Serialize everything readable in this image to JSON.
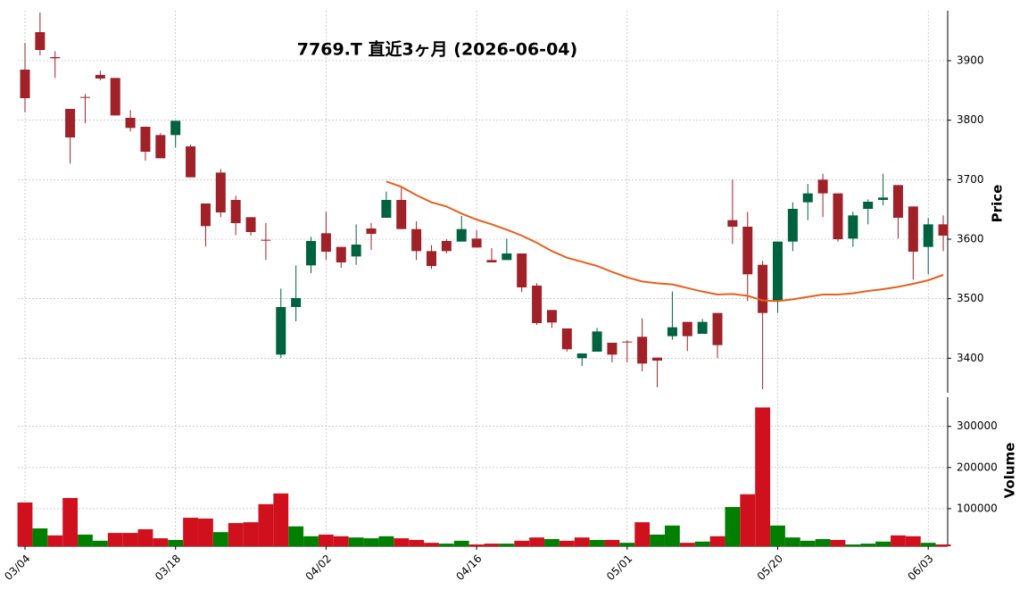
{
  "chart_data": {
    "type": "candlestick",
    "title": "7769.T  直近3ヶ月  (2026-06-04)",
    "categories": [
      "03/04",
      null,
      null,
      null,
      null,
      null,
      null,
      null,
      null,
      null,
      "03/18",
      null,
      null,
      null,
      null,
      null,
      null,
      null,
      null,
      null,
      "04/02",
      null,
      null,
      null,
      null,
      null,
      null,
      null,
      null,
      null,
      "04/16",
      null,
      null,
      null,
      null,
      null,
      null,
      null,
      null,
      null,
      "05/01",
      null,
      null,
      null,
      null,
      null,
      null,
      null,
      null,
      null,
      "05/20",
      null,
      null,
      null,
      null,
      null,
      null,
      null,
      null,
      null,
      "06/03",
      null
    ],
    "open": [
      3885,
      3948,
      3906,
      3819,
      3839,
      3876,
      3871,
      3804,
      3789,
      3775,
      3775,
      3756,
      3660,
      3712,
      3666,
      3637,
      3599,
      3406,
      3486,
      3556,
      3610,
      3587,
      3571,
      3618,
      3636,
      3666,
      3617,
      3580,
      3597,
      3596,
      3601,
      3565,
      3565,
      3576,
      3522,
      3481,
      3450,
      3400,
      3411,
      3426,
      3428,
      3436,
      3401,
      3437,
      3461,
      3441,
      3476,
      3632,
      3621,
      3557,
      3496,
      3596,
      3662,
      3700,
      3677,
      3601,
      3651,
      3666,
      3691,
      3655,
      3587,
      3625
    ],
    "high": [
      3930,
      3981,
      3916,
      3819,
      3844,
      3883,
      3871,
      3817,
      3789,
      3778,
      3799,
      3759,
      3660,
      3718,
      3673,
      3637,
      3627,
      3517,
      3556,
      3604,
      3646,
      3587,
      3625,
      3627,
      3680,
      3688,
      3630,
      3590,
      3600,
      3639,
      3615,
      3585,
      3601,
      3576,
      3526,
      3481,
      3450,
      3408,
      3451,
      3426,
      3430,
      3467,
      3401,
      3512,
      3461,
      3466,
      3476,
      3700,
      3646,
      3564,
      3596,
      3662,
      3693,
      3710,
      3677,
      3646,
      3667,
      3710,
      3691,
      3655,
      3636,
      3640
    ],
    "low": [
      3813,
      3909,
      3871,
      3727,
      3795,
      3867,
      3808,
      3781,
      3732,
      3736,
      3754,
      3704,
      3588,
      3637,
      3607,
      3606,
      3565,
      3400,
      3462,
      3543,
      3565,
      3552,
      3557,
      3582,
      3636,
      3617,
      3565,
      3550,
      3576,
      3596,
      3586,
      3561,
      3565,
      3511,
      3456,
      3451,
      3411,
      3387,
      3411,
      3393,
      3393,
      3378,
      3351,
      3431,
      3412,
      3441,
      3400,
      3592,
      3496,
      3348,
      3476,
      3580,
      3632,
      3637,
      3596,
      3587,
      3625,
      3657,
      3601,
      3532,
      3541,
      3580
    ],
    "close": [
      3837,
      3918,
      3904,
      3771,
      3838,
      3870,
      3808,
      3787,
      3747,
      3736,
      3799,
      3704,
      3622,
      3645,
      3627,
      3612,
      3598,
      3486,
      3501,
      3597,
      3579,
      3561,
      3591,
      3609,
      3666,
      3617,
      3580,
      3555,
      3580,
      3617,
      3586,
      3561,
      3576,
      3519,
      3459,
      3460,
      3415,
      3408,
      3445,
      3406,
      3427,
      3391,
      3396,
      3452,
      3437,
      3461,
      3422,
      3621,
      3541,
      3476,
      3596,
      3651,
      3677,
      3677,
      3600,
      3640,
      3663,
      3670,
      3636,
      3579,
      3625,
      3606
    ],
    "up_color": "#006340",
    "down_color": "#a02128",
    "ma": {
      "color": "#e8601c",
      "values": [
        null,
        null,
        null,
        null,
        null,
        null,
        null,
        null,
        null,
        null,
        null,
        null,
        null,
        null,
        null,
        null,
        null,
        null,
        null,
        null,
        null,
        null,
        null,
        null,
        3697,
        3688,
        3674,
        3662,
        3655,
        3643,
        3633,
        3625,
        3616,
        3606,
        3594,
        3580,
        3569,
        3562,
        3555,
        3545,
        3536,
        3529,
        3526,
        3524,
        3518,
        3512,
        3507,
        3508,
        3505,
        3497,
        3496,
        3499,
        3503,
        3507,
        3507,
        3509,
        3513,
        3516,
        3520,
        3525,
        3531,
        3540
      ]
    },
    "ylim": [
      3342,
      3984
    ],
    "yticks": [
      3400,
      3500,
      3600,
      3700,
      3800,
      3900
    ],
    "ylabel": "Price",
    "grid": true,
    "volume": {
      "values": [
        115000,
        52000,
        35000,
        126000,
        37000,
        22000,
        41000,
        41000,
        50000,
        28000,
        24000,
        78000,
        76000,
        43000,
        65000,
        67000,
        111000,
        137000,
        57000,
        33000,
        37000,
        33000,
        30000,
        28000,
        33000,
        28000,
        24000,
        17000,
        15000,
        22000,
        13000,
        15000,
        15000,
        22000,
        30000,
        26000,
        22000,
        30000,
        24000,
        24000,
        17000,
        67000,
        37000,
        59000,
        17000,
        20000,
        33000,
        104000,
        135000,
        346000,
        59000,
        30000,
        22000,
        26000,
        24000,
        13000,
        15000,
        20000,
        35000,
        33000,
        17000,
        13000
      ],
      "up_color": "#007f00",
      "down_color": "#d0101c",
      "ylim": [
        8700,
        371000
      ],
      "yticks": [
        100000,
        200000,
        300000
      ],
      "ylabel": "Volume"
    }
  }
}
